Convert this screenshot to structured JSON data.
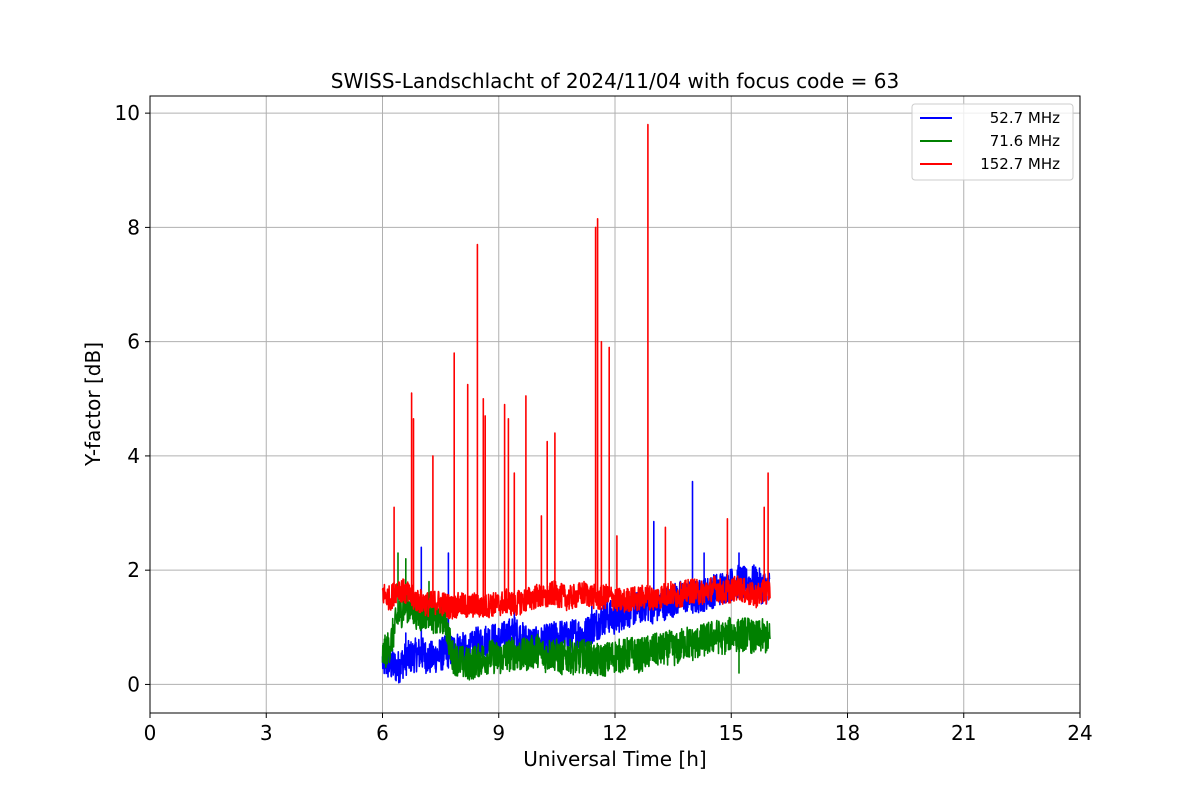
{
  "chart_data": {
    "type": "line",
    "title": "SWISS-Landschlacht of 2024/11/04 with focus code = 63",
    "xlabel": "Universal Time [h]",
    "ylabel": "Y-factor [dB]",
    "xlim": [
      0,
      24
    ],
    "ylim": [
      -0.5,
      10.3
    ],
    "xticks": [
      0,
      3,
      6,
      9,
      12,
      15,
      18,
      21,
      24
    ],
    "yticks": [
      0,
      2,
      4,
      6,
      8,
      10
    ],
    "grid": true,
    "legend_position": "top-right",
    "series": [
      {
        "name": "52.7 MHz",
        "color": "#0000ff",
        "x": [
          6.0,
          6.2,
          6.4,
          6.6,
          6.8,
          7.0,
          7.2,
          7.4,
          7.6,
          7.8,
          8.0,
          8.2,
          8.4,
          8.6,
          8.8,
          9.0,
          9.2,
          9.4,
          9.6,
          9.8,
          10.0,
          10.2,
          10.4,
          10.6,
          10.8,
          11.0,
          11.2,
          11.4,
          11.6,
          11.8,
          12.0,
          12.2,
          12.4,
          12.6,
          12.8,
          13.0,
          13.2,
          13.4,
          13.6,
          13.8,
          14.0,
          14.2,
          14.4,
          14.6,
          14.8,
          15.0,
          15.2,
          15.4,
          15.6,
          15.8,
          16.0
        ],
        "y": [
          0.4,
          0.35,
          0.3,
          0.45,
          0.5,
          0.55,
          0.45,
          0.5,
          0.55,
          0.6,
          0.65,
          0.55,
          0.7,
          0.75,
          0.8,
          0.75,
          0.85,
          0.9,
          0.8,
          0.75,
          0.7,
          0.75,
          0.8,
          0.85,
          0.8,
          0.9,
          0.85,
          1.0,
          1.1,
          1.2,
          1.15,
          1.25,
          1.3,
          1.35,
          1.4,
          1.35,
          1.4,
          1.45,
          1.5,
          1.55,
          1.5,
          1.55,
          1.6,
          1.65,
          1.7,
          1.75,
          1.8,
          1.75,
          1.8,
          1.7,
          1.7
        ],
        "spikes": [
          [
            6.6,
            0.9
          ],
          [
            7.0,
            2.4
          ],
          [
            7.7,
            2.3
          ],
          [
            9.4,
            1.3
          ],
          [
            11.4,
            1.6
          ],
          [
            13.0,
            2.85
          ],
          [
            14.0,
            3.55
          ],
          [
            14.3,
            2.3
          ],
          [
            15.2,
            2.3
          ]
        ]
      },
      {
        "name": "71.6 MHz",
        "color": "#008000",
        "x": [
          6.0,
          6.2,
          6.4,
          6.6,
          6.8,
          7.0,
          7.2,
          7.4,
          7.6,
          7.8,
          8.0,
          8.2,
          8.4,
          8.6,
          8.8,
          9.0,
          9.2,
          9.4,
          9.6,
          9.8,
          10.0,
          10.2,
          10.4,
          10.6,
          10.8,
          11.0,
          11.2,
          11.4,
          11.6,
          11.8,
          12.0,
          12.2,
          12.4,
          12.6,
          12.8,
          13.0,
          13.2,
          13.4,
          13.6,
          13.8,
          14.0,
          14.2,
          14.4,
          14.6,
          14.8,
          15.0,
          15.2,
          15.4,
          15.6,
          15.8,
          16.0
        ],
        "y": [
          0.5,
          0.7,
          1.2,
          1.4,
          1.3,
          1.2,
          1.3,
          1.1,
          1.2,
          0.5,
          0.4,
          0.35,
          0.4,
          0.45,
          0.5,
          0.45,
          0.5,
          0.55,
          0.5,
          0.55,
          0.6,
          0.5,
          0.55,
          0.45,
          0.5,
          0.45,
          0.5,
          0.45,
          0.4,
          0.45,
          0.5,
          0.5,
          0.55,
          0.5,
          0.55,
          0.6,
          0.6,
          0.65,
          0.6,
          0.75,
          0.7,
          0.75,
          0.8,
          0.85,
          0.8,
          0.9,
          0.85,
          0.9,
          0.8,
          0.85,
          0.8
        ],
        "spikes": [
          [
            6.4,
            2.3
          ],
          [
            6.6,
            2.2
          ],
          [
            7.2,
            1.8
          ],
          [
            8.2,
            0.1
          ],
          [
            15.2,
            0.2
          ]
        ]
      },
      {
        "name": "152.7 MHz",
        "color": "#ff0000",
        "x": [
          6.0,
          6.2,
          6.4,
          6.6,
          6.8,
          7.0,
          7.2,
          7.4,
          7.6,
          7.8,
          8.0,
          8.2,
          8.4,
          8.6,
          8.8,
          9.0,
          9.2,
          9.4,
          9.6,
          9.8,
          10.0,
          10.2,
          10.4,
          10.6,
          10.8,
          11.0,
          11.2,
          11.4,
          11.6,
          11.8,
          12.0,
          12.2,
          12.4,
          12.6,
          12.8,
          13.0,
          13.2,
          13.4,
          13.6,
          13.8,
          14.0,
          14.2,
          14.4,
          14.6,
          14.8,
          15.0,
          15.2,
          15.4,
          15.6,
          15.8,
          16.0
        ],
        "y": [
          1.6,
          1.5,
          1.7,
          1.6,
          1.5,
          1.45,
          1.4,
          1.45,
          1.4,
          1.35,
          1.4,
          1.35,
          1.4,
          1.35,
          1.4,
          1.4,
          1.45,
          1.4,
          1.45,
          1.5,
          1.55,
          1.5,
          1.6,
          1.55,
          1.5,
          1.55,
          1.6,
          1.55,
          1.5,
          1.55,
          1.5,
          1.45,
          1.5,
          1.5,
          1.55,
          1.5,
          1.55,
          1.6,
          1.55,
          1.6,
          1.65,
          1.6,
          1.65,
          1.7,
          1.6,
          1.65,
          1.7,
          1.6,
          1.55,
          1.6,
          1.65
        ],
        "spikes": [
          [
            6.3,
            3.1
          ],
          [
            6.75,
            5.1
          ],
          [
            6.8,
            4.65
          ],
          [
            7.3,
            4.0
          ],
          [
            7.85,
            5.8
          ],
          [
            8.2,
            5.25
          ],
          [
            8.45,
            7.7
          ],
          [
            8.6,
            5.0
          ],
          [
            8.65,
            4.7
          ],
          [
            9.15,
            4.9
          ],
          [
            9.25,
            4.65
          ],
          [
            9.4,
            3.7
          ],
          [
            9.7,
            5.05
          ],
          [
            10.1,
            2.95
          ],
          [
            10.25,
            4.25
          ],
          [
            10.45,
            4.4
          ],
          [
            11.5,
            8.0
          ],
          [
            11.55,
            8.15
          ],
          [
            11.65,
            6.0
          ],
          [
            11.85,
            5.9
          ],
          [
            12.05,
            2.6
          ],
          [
            12.85,
            9.8
          ],
          [
            13.3,
            2.75
          ],
          [
            14.9,
            2.9
          ],
          [
            15.85,
            3.1
          ],
          [
            15.95,
            3.7
          ]
        ]
      }
    ]
  }
}
